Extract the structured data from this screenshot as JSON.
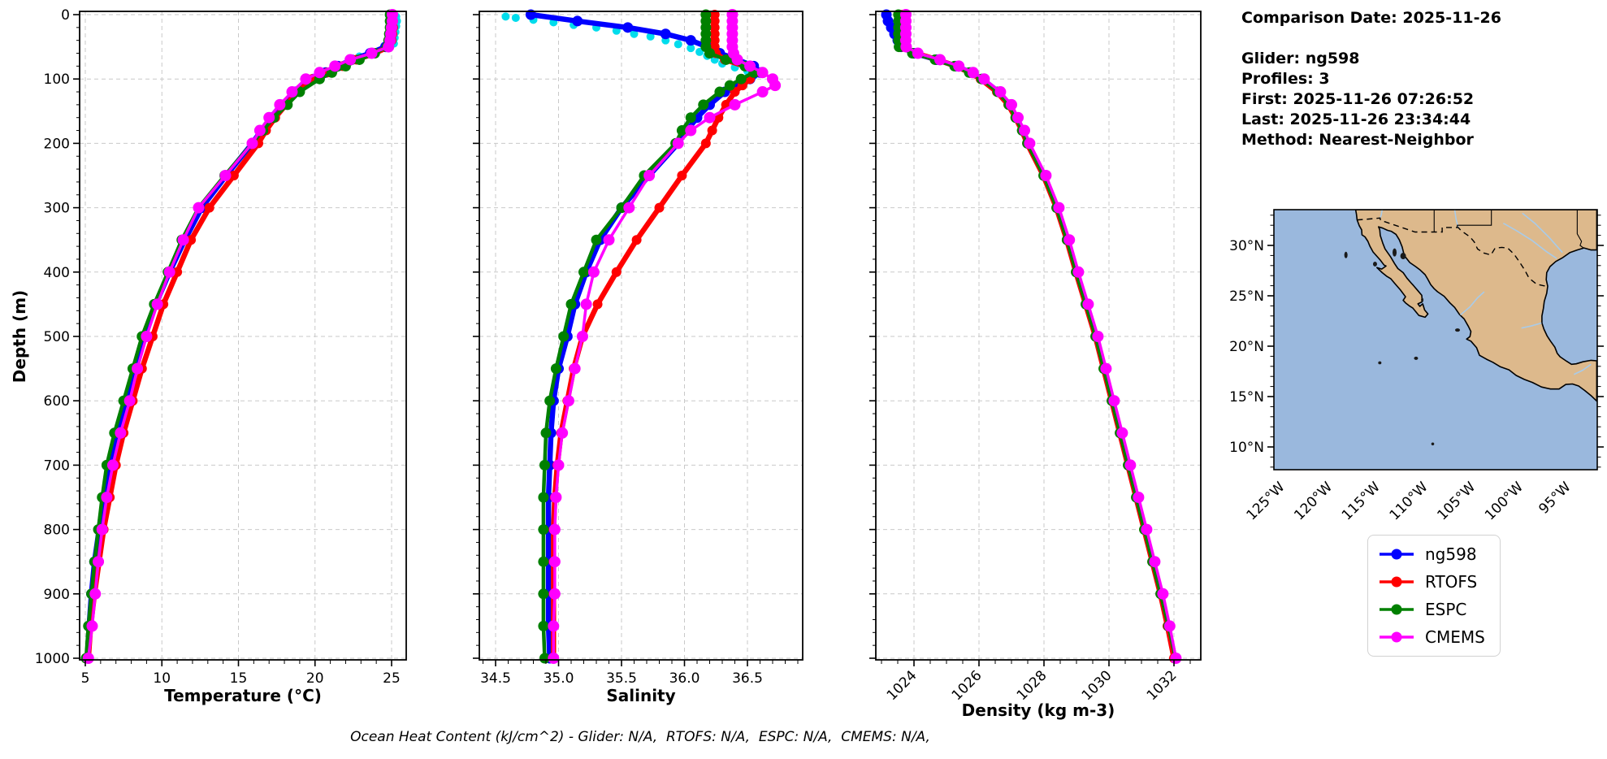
{
  "info_panel": {
    "comparison_date": "Comparison Date: 2025-11-26",
    "glider": "Glider: ng598",
    "profiles": "Profiles: 3",
    "first": "First: 2025-11-26 07:26:52",
    "last": "Last: 2025-11-26 23:34:44",
    "method": "Method: Nearest-Neighbor"
  },
  "caption": "Ocean Heat Content (kJ/cm^2) - Glider: N/A,  RTOFS: N/A,  ESPC: N/A,  CMEMS: N/A,",
  "legend": {
    "items": [
      {
        "label": "ng598",
        "color": "#0000ff"
      },
      {
        "label": "RTOFS",
        "color": "#ff0000"
      },
      {
        "label": "ESPC",
        "color": "#008000"
      },
      {
        "label": "CMEMS",
        "color": "#ff00ff"
      }
    ]
  },
  "map": {
    "land_color": "#ddb98c",
    "water_color": "#9ab8dd",
    "river_color": "#a9cbe8",
    "lat_tick_values": [
      30,
      25,
      20,
      15,
      10
    ],
    "lat_tick_labels": [
      "30°N",
      "25°N",
      "20°N",
      "15°N",
      "10°N"
    ],
    "lon_tick_values": [
      -125,
      -120,
      -115,
      -110,
      -105,
      -100,
      -95
    ],
    "lon_tick_labels": [
      "125°W",
      "120°W",
      "115°W",
      "110°W",
      "105°W",
      "100°W",
      "95°W"
    ]
  },
  "chart_data": [
    {
      "type": "line",
      "xlabel": "Temperature (°C)",
      "ylabel": "Depth (m)",
      "xlim": [
        4.6,
        26.0
      ],
      "ylim": [
        1000,
        0
      ],
      "grid": true,
      "xticks": [
        5,
        10,
        15,
        20,
        25
      ],
      "xtick_labels": [
        "5",
        "10",
        "15",
        "20",
        "25"
      ],
      "yticks": [
        0,
        100,
        200,
        300,
        400,
        500,
        600,
        700,
        800,
        900,
        1000
      ],
      "depths": [
        0,
        10,
        20,
        30,
        40,
        50,
        60,
        70,
        80,
        90,
        100,
        120,
        140,
        160,
        180,
        200,
        250,
        300,
        350,
        400,
        450,
        500,
        550,
        600,
        650,
        700,
        750,
        800,
        850,
        900,
        950,
        1000
      ],
      "series": [
        {
          "name": "ng598",
          "color": "#0000ff",
          "values": [
            25.0,
            25.0,
            25.05,
            25.0,
            24.9,
            24.6,
            23.6,
            22.4,
            21.5,
            20.7,
            19.9,
            18.7,
            17.8,
            17.1,
            16.5,
            15.9,
            14.2,
            12.6,
            11.5,
            10.5,
            9.6,
            8.9,
            8.3,
            7.7,
            7.1,
            6.6,
            6.2,
            5.9,
            5.6,
            5.4,
            5.25,
            5.15
          ]
        },
        {
          "name": "RTOFS",
          "color": "#ff0000",
          "values": [
            25.1,
            25.1,
            25.1,
            25.05,
            25.0,
            24.8,
            23.9,
            22.7,
            21.8,
            20.8,
            19.8,
            18.9,
            18.1,
            17.4,
            16.8,
            16.3,
            14.7,
            13.1,
            11.9,
            11.0,
            10.1,
            9.4,
            8.7,
            8.1,
            7.5,
            7.0,
            6.6,
            6.2,
            5.9,
            5.6,
            5.35,
            5.2
          ]
        },
        {
          "name": "ESPC",
          "color": "#008000",
          "values": [
            24.9,
            24.9,
            24.9,
            24.85,
            24.8,
            24.7,
            23.9,
            22.9,
            22.0,
            21.1,
            20.3,
            19.0,
            18.2,
            17.3,
            16.6,
            15.9,
            14.1,
            12.4,
            11.3,
            10.4,
            9.5,
            8.7,
            8.1,
            7.5,
            6.9,
            6.4,
            6.1,
            5.85,
            5.6,
            5.4,
            5.2,
            5.05
          ]
        },
        {
          "name": "CMEMS",
          "color": "#ff00ff",
          "values": [
            25.05,
            25.05,
            25.0,
            24.95,
            24.9,
            24.8,
            23.7,
            22.3,
            21.3,
            20.3,
            19.4,
            18.5,
            17.7,
            17.0,
            16.4,
            15.9,
            14.15,
            12.4,
            11.4,
            10.5,
            9.7,
            9.0,
            8.4,
            7.9,
            7.3,
            6.8,
            6.4,
            6.1,
            5.85,
            5.65,
            5.45,
            5.2
          ]
        }
      ],
      "scatter": {
        "name": "glider raw points",
        "color": "#00dcec",
        "points": [
          [
            25.3,
            3
          ],
          [
            25.35,
            10
          ],
          [
            25.3,
            18
          ],
          [
            25.25,
            27
          ],
          [
            25.2,
            36
          ],
          [
            25.15,
            45
          ],
          [
            24.6,
            52
          ],
          [
            23.8,
            58
          ],
          [
            22.9,
            65
          ],
          [
            22.2,
            72
          ],
          [
            21.4,
            80
          ],
          [
            20.7,
            90
          ]
        ]
      }
    },
    {
      "type": "line",
      "xlabel": "Salinity",
      "ylabel": "Depth (m)",
      "xlim": [
        34.37,
        36.94
      ],
      "ylim": [
        1000,
        0
      ],
      "grid": true,
      "xticks": [
        34.5,
        35.0,
        35.5,
        36.0,
        36.5
      ],
      "xtick_labels": [
        "34.5",
        "35.0",
        "35.5",
        "36.0",
        "36.5"
      ],
      "yticks": [
        0,
        100,
        200,
        300,
        400,
        500,
        600,
        700,
        800,
        900,
        1000
      ],
      "depths": [
        0,
        10,
        20,
        30,
        40,
        50,
        60,
        70,
        80,
        90,
        100,
        110,
        120,
        140,
        160,
        180,
        200,
        250,
        300,
        350,
        400,
        450,
        500,
        550,
        600,
        650,
        700,
        750,
        800,
        850,
        900,
        950,
        1000
      ],
      "series": [
        {
          "name": "ng598",
          "color": "#0000ff",
          "values": [
            34.78,
            35.15,
            35.55,
            35.85,
            36.05,
            36.18,
            36.28,
            36.42,
            36.55,
            36.6,
            36.52,
            36.42,
            36.32,
            36.2,
            36.1,
            36.02,
            35.95,
            35.72,
            35.5,
            35.33,
            35.22,
            35.13,
            35.07,
            35.0,
            34.96,
            34.94,
            34.93,
            34.92,
            34.92,
            34.92,
            34.92,
            34.92,
            34.93
          ]
        },
        {
          "name": "RTOFS",
          "color": "#ff0000",
          "values": [
            36.24,
            36.24,
            36.24,
            36.24,
            36.24,
            36.24,
            36.25,
            36.32,
            36.48,
            36.56,
            36.52,
            36.46,
            36.4,
            36.33,
            36.27,
            36.22,
            36.17,
            35.98,
            35.8,
            35.62,
            35.46,
            35.31,
            35.19,
            35.12,
            35.07,
            35.02,
            34.99,
            34.97,
            34.96,
            34.96,
            34.96,
            34.96,
            34.96
          ]
        },
        {
          "name": "ESPC",
          "color": "#008000",
          "values": [
            36.17,
            36.17,
            36.17,
            36.17,
            36.17,
            36.17,
            36.2,
            36.33,
            36.48,
            36.55,
            36.45,
            36.36,
            36.28,
            36.15,
            36.05,
            35.98,
            35.93,
            35.68,
            35.5,
            35.3,
            35.2,
            35.1,
            35.04,
            34.98,
            34.93,
            34.9,
            34.89,
            34.88,
            34.88,
            34.88,
            34.88,
            34.88,
            34.89
          ]
        },
        {
          "name": "CMEMS",
          "color": "#ff00ff",
          "values": [
            36.38,
            36.38,
            36.38,
            36.38,
            36.38,
            36.38,
            36.39,
            36.42,
            36.52,
            36.62,
            36.7,
            36.72,
            36.62,
            36.4,
            36.2,
            36.05,
            35.95,
            35.72,
            35.56,
            35.4,
            35.28,
            35.22,
            35.19,
            35.13,
            35.08,
            35.03,
            35.0,
            34.98,
            34.97,
            34.97,
            34.97,
            34.96,
            34.96
          ]
        }
      ],
      "scatter": {
        "name": "glider raw points",
        "color": "#00dcec",
        "points": [
          [
            34.58,
            3
          ],
          [
            34.66,
            5
          ],
          [
            34.8,
            8
          ],
          [
            34.96,
            12
          ],
          [
            35.12,
            16
          ],
          [
            35.3,
            20
          ],
          [
            35.46,
            25
          ],
          [
            35.6,
            30
          ],
          [
            35.73,
            34
          ],
          [
            35.85,
            40
          ],
          [
            35.95,
            46
          ],
          [
            36.05,
            52
          ],
          [
            36.12,
            58
          ],
          [
            36.18,
            64
          ],
          [
            36.24,
            70
          ],
          [
            36.3,
            76
          ],
          [
            36.4,
            82
          ],
          [
            36.5,
            88
          ],
          [
            36.55,
            95
          ]
        ]
      }
    },
    {
      "type": "line",
      "xlabel": "Density (kg m-3)",
      "ylabel": "Depth (m)",
      "xlim": [
        1022.8,
        1032.8
      ],
      "ylim": [
        1000,
        0
      ],
      "grid": true,
      "xticks": [
        1024,
        1026,
        1028,
        1030,
        1032
      ],
      "xtick_labels": [
        "1024",
        "1026",
        "1028",
        "1030",
        "1032"
      ],
      "yticks": [
        0,
        100,
        200,
        300,
        400,
        500,
        600,
        700,
        800,
        900,
        1000
      ],
      "depths": [
        0,
        10,
        20,
        30,
        40,
        50,
        60,
        70,
        80,
        90,
        100,
        120,
        140,
        160,
        180,
        200,
        250,
        300,
        350,
        400,
        450,
        500,
        550,
        600,
        650,
        700,
        750,
        800,
        850,
        900,
        950,
        1000
      ],
      "series": [
        {
          "name": "ng598",
          "color": "#0000ff",
          "values": [
            1023.15,
            1023.2,
            1023.3,
            1023.4,
            1023.5,
            1023.6,
            1024.0,
            1024.7,
            1025.3,
            1025.75,
            1026.1,
            1026.6,
            1026.95,
            1027.15,
            1027.35,
            1027.5,
            1028.0,
            1028.4,
            1028.72,
            1029.0,
            1029.3,
            1029.6,
            1029.85,
            1030.1,
            1030.35,
            1030.6,
            1030.85,
            1031.1,
            1031.35,
            1031.6,
            1031.82,
            1032.02
          ]
        },
        {
          "name": "RTOFS",
          "color": "#ff0000",
          "values": [
            1023.65,
            1023.65,
            1023.65,
            1023.65,
            1023.65,
            1023.66,
            1024.05,
            1024.72,
            1025.28,
            1025.72,
            1026.05,
            1026.55,
            1026.9,
            1027.12,
            1027.32,
            1027.48,
            1027.98,
            1028.38,
            1028.7,
            1028.98,
            1029.28,
            1029.58,
            1029.83,
            1030.08,
            1030.33,
            1030.58,
            1030.83,
            1031.08,
            1031.33,
            1031.58,
            1031.8,
            1032.0
          ]
        },
        {
          "name": "ESPC",
          "color": "#008000",
          "values": [
            1023.52,
            1023.52,
            1023.52,
            1023.52,
            1023.52,
            1023.54,
            1023.95,
            1024.65,
            1025.25,
            1025.7,
            1026.08,
            1026.58,
            1026.92,
            1027.13,
            1027.33,
            1027.49,
            1027.99,
            1028.39,
            1028.71,
            1028.99,
            1029.29,
            1029.59,
            1029.84,
            1030.09,
            1030.34,
            1030.59,
            1030.84,
            1031.09,
            1031.34,
            1031.59,
            1031.83,
            1032.05
          ]
        },
        {
          "name": "CMEMS",
          "color": "#ff00ff",
          "values": [
            1023.75,
            1023.75,
            1023.75,
            1023.75,
            1023.75,
            1023.76,
            1024.12,
            1024.8,
            1025.38,
            1025.82,
            1026.16,
            1026.66,
            1027.0,
            1027.2,
            1027.4,
            1027.56,
            1028.06,
            1028.46,
            1028.78,
            1029.06,
            1029.36,
            1029.66,
            1029.91,
            1030.16,
            1030.41,
            1030.66,
            1030.91,
            1031.16,
            1031.41,
            1031.66,
            1031.87,
            1032.06
          ]
        }
      ],
      "scatter": {
        "name": "glider raw points",
        "color": "#00dcec",
        "points": [
          [
            1023.18,
            3
          ],
          [
            1023.22,
            8
          ],
          [
            1023.3,
            14
          ],
          [
            1023.42,
            22
          ]
        ]
      }
    }
  ]
}
